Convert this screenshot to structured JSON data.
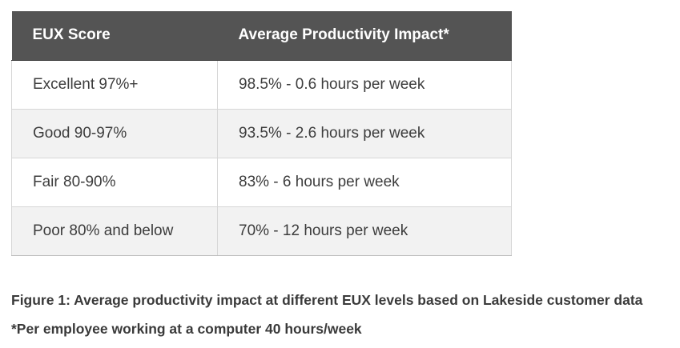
{
  "table": {
    "headers": [
      "EUX Score",
      "Average Productivity Impact*"
    ],
    "rows": [
      [
        "Excellent 97%+",
        "98.5% - 0.6 hours per week"
      ],
      [
        "Good 90-97%",
        "93.5% - 2.6 hours per week"
      ],
      [
        "Fair 80-90%",
        "83% - 6 hours per week"
      ],
      [
        "Poor 80% and below",
        "70% - 12 hours per week"
      ]
    ]
  },
  "caption": "Figure 1: Average productivity impact at different EUX levels based on Lakeside customer data",
  "footnote": "*Per employee working at a computer 40 hours/week",
  "colors": {
    "header_bg": "#545454",
    "header_text": "#ffffff",
    "row_alt_bg": "#f2f2f2",
    "border": "#d6d6d6"
  }
}
